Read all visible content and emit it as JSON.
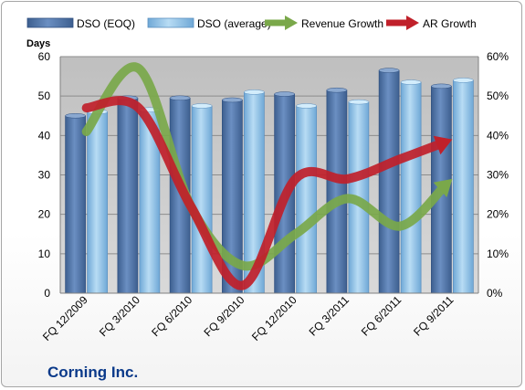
{
  "company": "Corning Inc.",
  "colors": {
    "dso_eoq": "#4e74a8",
    "dso_avg": "#8fc3e8",
    "revenue_growth": "#7aa84a",
    "ar_growth": "#c0202a",
    "plot_bg": "#c8c8c8"
  },
  "chart_data": {
    "type": "bar",
    "categories": [
      "FQ 12/2009",
      "FQ 3/2010",
      "FQ 6/2010",
      "FQ 9/2010",
      "FQ 12/2010",
      "FQ 3/2011",
      "FQ 6/2011",
      "FQ 9/2011"
    ],
    "series": [
      {
        "name": "DSO (EOQ)",
        "type": "bar",
        "axis": "left",
        "values": [
          45,
          49.5,
          49.5,
          49,
          50.5,
          51.5,
          56.5,
          52.5
        ]
      },
      {
        "name": "DSO (average)",
        "type": "bar",
        "axis": "left",
        "values": [
          46,
          46.5,
          47.5,
          51,
          47.5,
          48.5,
          53.5,
          54
        ]
      },
      {
        "name": "Revenue Growth",
        "type": "line",
        "axis": "right",
        "values": [
          0.41,
          0.57,
          0.22,
          0.07,
          0.15,
          0.24,
          0.17,
          0.29
        ]
      },
      {
        "name": "AR Growth",
        "type": "line",
        "axis": "right",
        "values": [
          0.47,
          0.47,
          0.22,
          0.02,
          0.29,
          0.29,
          0.34,
          0.39
        ]
      }
    ],
    "ylabel": "Days",
    "ylim": [
      0,
      60
    ],
    "yticks": [
      "0",
      "10",
      "20",
      "30",
      "40",
      "50",
      "60"
    ],
    "y2lim": [
      0,
      0.6
    ],
    "y2ticks": [
      "0%",
      "10%",
      "20%",
      "30%",
      "40%",
      "50%",
      "60%"
    ],
    "legend_position": "top",
    "grid": true
  }
}
